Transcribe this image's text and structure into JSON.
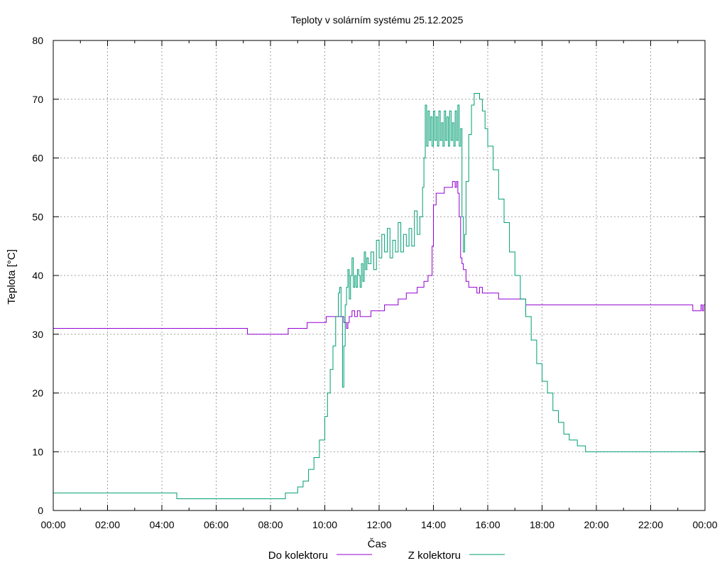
{
  "chart_data": {
    "type": "line",
    "title": "Teploty v solárním systému 25.12.2025",
    "xlabel": "Čas",
    "ylabel": "Teplota [°C]",
    "xlim": [
      0,
      24
    ],
    "ylim": [
      0,
      80
    ],
    "grid": true,
    "legend_position": "bottom-center",
    "x_ticks": [
      {
        "value": 0,
        "label": "00:00"
      },
      {
        "value": 2,
        "label": "02:00"
      },
      {
        "value": 4,
        "label": "04:00"
      },
      {
        "value": 6,
        "label": "06:00"
      },
      {
        "value": 8,
        "label": "08:00"
      },
      {
        "value": 10,
        "label": "10:00"
      },
      {
        "value": 12,
        "label": "12:00"
      },
      {
        "value": 14,
        "label": "14:00"
      },
      {
        "value": 16,
        "label": "16:00"
      },
      {
        "value": 18,
        "label": "18:00"
      },
      {
        "value": 20,
        "label": "20:00"
      },
      {
        "value": 22,
        "label": "22:00"
      },
      {
        "value": 24,
        "label": "00:00"
      }
    ],
    "y_ticks": [
      {
        "value": 0,
        "label": "0"
      },
      {
        "value": 10,
        "label": "10"
      },
      {
        "value": 20,
        "label": "20"
      },
      {
        "value": 30,
        "label": "30"
      },
      {
        "value": 40,
        "label": "40"
      },
      {
        "value": 50,
        "label": "50"
      },
      {
        "value": 60,
        "label": "60"
      },
      {
        "value": 70,
        "label": "70"
      },
      {
        "value": 80,
        "label": "80"
      }
    ],
    "series": [
      {
        "name": "Do kolektoru",
        "color": "#9400d3",
        "x": [
          0,
          7.1,
          7.15,
          7.2,
          8.6,
          8.65,
          9.3,
          9.35,
          10.0,
          10.05,
          10.6,
          10.7,
          10.8,
          10.85,
          10.9,
          11.0,
          11.1,
          11.2,
          11.3,
          11.4,
          11.7,
          11.8,
          12.1,
          12.2,
          12.6,
          12.7,
          12.9,
          13.0,
          13.4,
          13.5,
          13.65,
          13.7,
          13.8,
          13.85,
          13.95,
          14.0,
          14.1,
          14.2,
          14.4,
          14.5,
          14.6,
          14.7,
          14.8,
          14.85,
          14.9,
          14.95,
          15.0,
          15.05,
          15.1,
          15.2,
          15.3,
          15.5,
          15.6,
          15.7,
          15.8,
          16.0,
          16.2,
          16.4,
          16.8,
          17.0,
          17.1,
          17.4,
          17.6,
          17.7,
          17.8,
          20.0,
          22.0,
          23.5,
          23.55,
          23.8,
          23.85,
          23.9,
          23.95,
          24.0
        ],
        "y": [
          31,
          31,
          30,
          30,
          30,
          31,
          31,
          32,
          32,
          33,
          33,
          32,
          31,
          32,
          33,
          34,
          33,
          34,
          33,
          33,
          34,
          34,
          34,
          35,
          35,
          36,
          36,
          37,
          38,
          38,
          39,
          39,
          40,
          40,
          45,
          52,
          54,
          54,
          55,
          55,
          55,
          56,
          55,
          56,
          54,
          50,
          43,
          42,
          41,
          39,
          38,
          38,
          37,
          38,
          37,
          37,
          37,
          36,
          36,
          36,
          36,
          35,
          35,
          35,
          35,
          35,
          35,
          35,
          34,
          34,
          35,
          34,
          35,
          35
        ]
      },
      {
        "name": "Z kolektoru",
        "color": "#009e73",
        "x": [
          0,
          4.5,
          4.55,
          6.0,
          8.0,
          8.5,
          8.55,
          8.9,
          9.0,
          9.2,
          9.4,
          9.6,
          9.8,
          10.0,
          10.1,
          10.2,
          10.3,
          10.4,
          10.5,
          10.55,
          10.6,
          10.65,
          10.7,
          10.75,
          10.8,
          10.85,
          10.9,
          10.95,
          11.0,
          11.05,
          11.1,
          11.15,
          11.2,
          11.25,
          11.3,
          11.35,
          11.4,
          11.45,
          11.5,
          11.55,
          11.6,
          11.7,
          11.8,
          11.9,
          12.0,
          12.1,
          12.2,
          12.3,
          12.4,
          12.5,
          12.6,
          12.7,
          12.8,
          12.9,
          13.0,
          13.1,
          13.2,
          13.3,
          13.4,
          13.5,
          13.6,
          13.65,
          13.7,
          13.75,
          13.8,
          13.85,
          13.9,
          13.95,
          14.0,
          14.05,
          14.1,
          14.15,
          14.2,
          14.25,
          14.3,
          14.35,
          14.4,
          14.45,
          14.5,
          14.55,
          14.6,
          14.65,
          14.7,
          14.75,
          14.8,
          14.85,
          14.9,
          14.95,
          15.0,
          15.05,
          15.1,
          15.15,
          15.2,
          15.3,
          15.4,
          15.5,
          15.6,
          15.7,
          15.8,
          15.9,
          16.0,
          16.2,
          16.4,
          16.6,
          16.8,
          17.0,
          17.2,
          17.4,
          17.6,
          17.8,
          18.0,
          18.2,
          18.4,
          18.6,
          18.8,
          19.0,
          19.3,
          19.6,
          19.9,
          20.2,
          20.5,
          20.8,
          21.1,
          21.5,
          21.8,
          22.2,
          22.6,
          22.8,
          22.9,
          23.5,
          24.0
        ],
        "y": [
          3,
          3,
          2,
          2,
          2,
          2,
          3,
          3,
          4,
          5,
          7,
          9,
          12,
          16,
          20,
          24,
          28,
          33,
          37,
          38,
          33,
          21,
          28,
          35,
          38,
          41,
          36,
          40,
          43,
          38,
          40,
          38,
          41,
          40,
          38,
          42,
          39,
          44,
          41,
          43,
          42,
          44,
          41,
          46,
          43,
          47,
          44,
          48,
          43,
          46,
          44,
          49,
          44,
          47,
          45,
          48,
          45,
          51,
          47,
          50,
          55,
          60,
          69,
          62,
          68,
          63,
          67,
          62,
          68,
          63,
          67,
          62,
          68,
          63,
          66,
          62,
          68,
          63,
          67,
          62,
          68,
          63,
          66,
          62,
          68,
          63,
          69,
          62,
          65,
          50,
          44,
          47,
          56,
          64,
          69,
          71,
          71,
          70,
          68,
          65,
          62,
          58,
          53,
          49,
          44,
          40,
          36,
          33,
          29,
          25,
          22,
          20,
          17,
          15,
          13,
          12,
          11,
          10,
          10,
          10,
          10,
          10,
          10,
          10,
          10,
          10,
          10,
          10,
          10,
          10,
          10
        ]
      }
    ]
  }
}
